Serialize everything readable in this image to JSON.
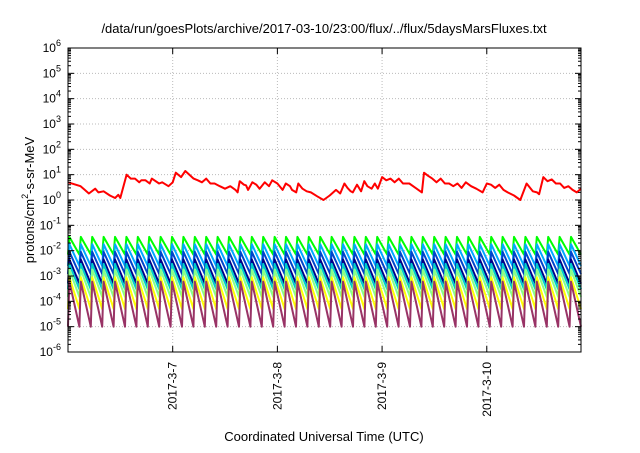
{
  "chart_data": {
    "type": "line",
    "title": "/data/run/goesPlots/archive/2017-03-10/23:00/flux/../flux/5daysMarsFluxes.txt",
    "xlabel": "Coordinated Universal Time (UTC)",
    "ylabel": "protons/cm^2-s-sr-MeV",
    "yscale": "log",
    "ylim": [
      1e-06,
      1000000.0
    ],
    "xlim_days": [
      0,
      4.9
    ],
    "x_tick_labels": [
      "2017-3-7",
      "2017-3-8",
      "2017-3-9",
      "2017-3-10"
    ],
    "x_tick_days": [
      1,
      2,
      3,
      4
    ],
    "y_tick_exponents": [
      -6,
      -5,
      -4,
      -3,
      -2,
      -1,
      0,
      1,
      2,
      3,
      4,
      5,
      6
    ],
    "grid": true,
    "series": [
      {
        "color": "#ff0000",
        "x": [
          0.0,
          0.12,
          0.16,
          0.2,
          0.26,
          0.29,
          0.34,
          0.4,
          0.45,
          0.48,
          0.5,
          0.56,
          0.6,
          0.64,
          0.68,
          0.7,
          0.74,
          0.78,
          0.8,
          0.87,
          0.9,
          0.96,
          1.0,
          1.03,
          1.08,
          1.12,
          1.16,
          1.2,
          1.24,
          1.28,
          1.32,
          1.36,
          1.4,
          1.45,
          1.5,
          1.55,
          1.6,
          1.62,
          1.64,
          1.68,
          1.7,
          1.72,
          1.76,
          1.8,
          1.83,
          1.88,
          1.92,
          1.95,
          2.0,
          2.05,
          2.08,
          2.12,
          2.14,
          2.18,
          2.2,
          2.24,
          2.28,
          2.32,
          2.38,
          2.44,
          2.5,
          2.56,
          2.6,
          2.64,
          2.67,
          2.7,
          2.72,
          2.76,
          2.8,
          2.83,
          2.86,
          2.9,
          2.93,
          2.96,
          3.0,
          3.04,
          3.08,
          3.12,
          3.16,
          3.2,
          3.26,
          3.32,
          3.38,
          3.4,
          3.44,
          3.48,
          3.52,
          3.56,
          3.6,
          3.64,
          3.68,
          3.72,
          3.76,
          3.8,
          3.85,
          3.9,
          3.96,
          4.0,
          4.04,
          4.08,
          4.12,
          4.16,
          4.2,
          4.26,
          4.32,
          4.38,
          4.44,
          4.48,
          4.5,
          4.54,
          4.58,
          4.62,
          4.66,
          4.7,
          4.74,
          4.78,
          4.82,
          4.86,
          4.9
        ],
        "y": [
          5,
          3.5,
          2.5,
          1.8,
          2.8,
          2.0,
          2.2,
          1.5,
          1.2,
          1.6,
          1.2,
          10,
          7,
          7,
          5,
          6,
          6,
          4.5,
          7,
          4.5,
          5,
          3.5,
          5,
          12,
          8,
          14,
          10,
          7,
          6,
          5,
          7,
          4.5,
          4.5,
          3.5,
          2.8,
          3.5,
          2.5,
          2.0,
          5.5,
          4.0,
          3.8,
          2.5,
          5,
          4,
          2.8,
          5,
          3.5,
          6,
          4.5,
          2.5,
          4.5,
          3.5,
          2.5,
          2.0,
          4.5,
          2.8,
          2.2,
          2.0,
          1.4,
          1.0,
          1.5,
          2.5,
          1.8,
          4.5,
          3.0,
          2.2,
          2.0,
          4.0,
          2.2,
          5.5,
          3.5,
          2.8,
          4.5,
          2.8,
          8,
          6,
          7,
          5,
          7,
          4.5,
          4.5,
          3.0,
          2.0,
          12,
          9,
          7,
          5,
          7,
          4.5,
          4.5,
          3.5,
          4.5,
          3.0,
          5,
          3.5,
          2.8,
          2.0,
          4.5,
          4,
          3,
          4,
          2.5,
          2.0,
          1.5,
          1.0,
          4.5,
          2.2,
          2.0,
          1.7,
          8,
          5.5,
          6.5,
          4.5,
          4.5,
          3,
          3.5,
          2.5,
          2.0,
          2.8
        ]
      },
      {
        "color": "#00ff00",
        "peak": 0.035,
        "trough": 0.007
      },
      {
        "color": "#00aaff",
        "peak": 0.018,
        "trough": 0.0025
      },
      {
        "color": "#0044cc",
        "peak": 0.009,
        "trough": 0.0012
      },
      {
        "color": "#000088",
        "peak": 0.0045,
        "trough": 0.0005
      },
      {
        "color": "#00cccc",
        "peak": 0.003,
        "trough": 0.0003
      },
      {
        "color": "#88ff88",
        "peak": 0.0018,
        "trough": 0.00015
      },
      {
        "color": "#ffff00",
        "peak": 0.0009,
        "trough": 5e-05
      },
      {
        "color": "#993366",
        "peak": 0.0006,
        "trough": 1e-05
      }
    ],
    "sawtooth": {
      "count": 45,
      "x_end": 4.9
    }
  }
}
